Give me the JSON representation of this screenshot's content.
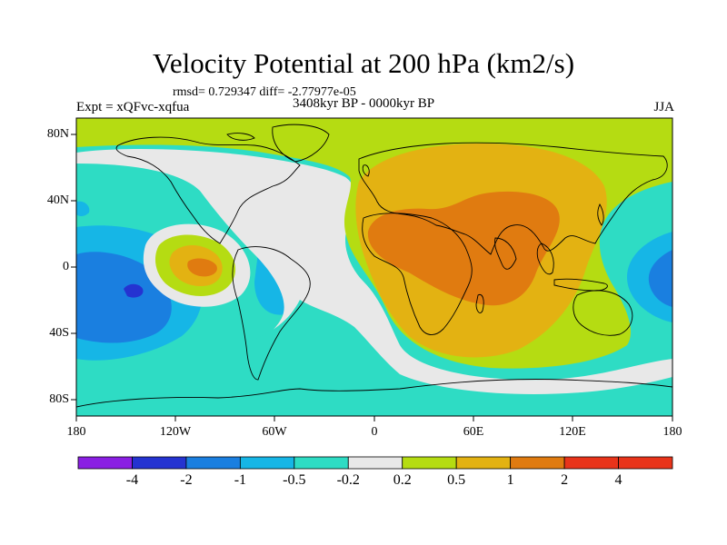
{
  "title": "Velocity Potential at 200 hPa (km2/s)",
  "stats": "rmsd= 0.729347 diff= -2.77977e-05",
  "experiment": "Expt = xQFvc-xqfua",
  "period": "3408kyr BP - 0000kyr BP",
  "season": "JJA",
  "y_axis": {
    "labels": [
      "80N",
      "40N",
      "0",
      "40S",
      "80S"
    ]
  },
  "x_axis": {
    "labels": [
      "180",
      "120W",
      "60W",
      "0",
      "60E",
      "120E",
      "180"
    ]
  },
  "colorbar": {
    "labels": [
      "-4",
      "-2",
      "-1",
      "-0.5",
      "-0.2",
      "0.2",
      "0.5",
      "1",
      "2",
      "4"
    ],
    "colors": [
      "#8a1fe3",
      "#2533d1",
      "#1a7fe0",
      "#16b6e6",
      "#2edcc4",
      "#e8e8e8",
      "#b5dc12",
      "#e3b212",
      "#e07b10",
      "#e8341a"
    ]
  }
}
